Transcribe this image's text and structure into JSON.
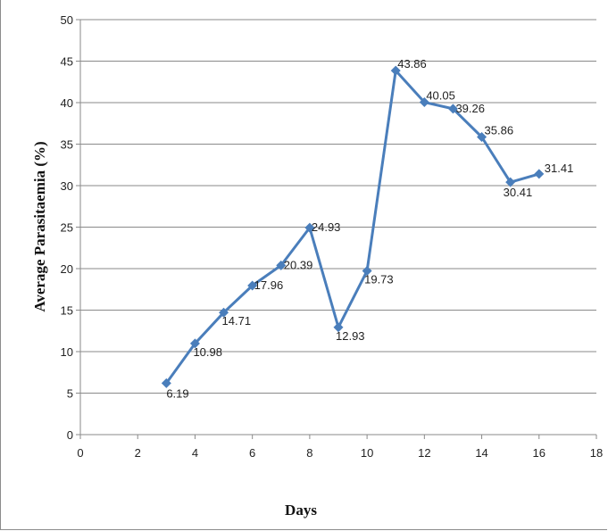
{
  "chart_data": {
    "type": "line",
    "xlabel": "Days",
    "ylabel": "Average Parasitaemia (%)",
    "xlim": [
      0,
      18
    ],
    "ylim": [
      0,
      50
    ],
    "x_ticks": [
      0,
      2,
      4,
      6,
      8,
      10,
      12,
      14,
      16,
      18
    ],
    "y_ticks": [
      0,
      5,
      10,
      15,
      20,
      25,
      30,
      35,
      40,
      45,
      50
    ],
    "grid": "horizontal",
    "series": [
      {
        "color": "#4a7ebb",
        "marker": "diamond",
        "x": [
          3,
          4,
          5,
          6,
          7,
          8,
          9,
          10,
          11,
          12,
          13,
          14,
          15,
          16
        ],
        "y": [
          6.19,
          10.98,
          14.71,
          17.96,
          20.39,
          24.93,
          12.93,
          19.73,
          43.86,
          40.05,
          39.26,
          35.86,
          30.41,
          31.41
        ],
        "labels": [
          "6.19",
          "10.98",
          "14.71",
          "17.96",
          "20.39",
          "24.93",
          "12.93",
          "19.73",
          "43.86",
          "40.05",
          "39.26",
          "35.86",
          "30.41",
          "31.41"
        ]
      }
    ]
  }
}
